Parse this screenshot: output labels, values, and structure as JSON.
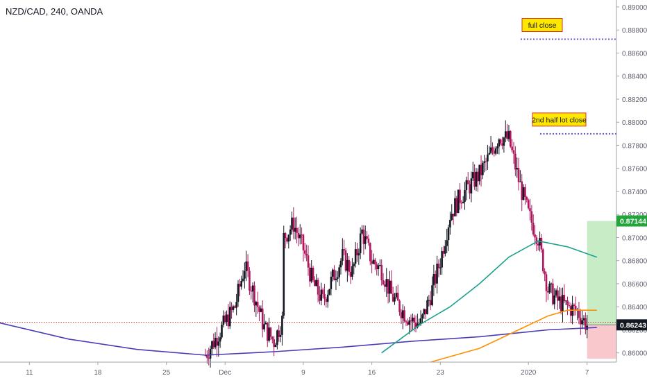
{
  "header": {
    "title": "NZD/CAD, 240, OANDA"
  },
  "colors": {
    "bg": "#ffffff",
    "axis": "#5d606b",
    "text": "#333333",
    "candle_up": "#131722",
    "candle_down": "#b0165e",
    "wick": "#5d606b",
    "ma_long": "#4a3cb5",
    "ma_mid": "#1aa18c",
    "ma_short": "#ff8f00",
    "ref_line": "#c0392b",
    "dotted_line": "#6a4fc8",
    "annotation_bg": "#ffe800",
    "annotation_border": "#d32f2f",
    "target_zone": "#c8ecc6",
    "stop_zone": "#f8c8cc",
    "price_tag_green": "#22a53a",
    "price_tag_dark": "#131722"
  },
  "annotations": [
    {
      "label": "full close",
      "price": 0.8872
    },
    {
      "label": "2nd half lot close",
      "price": 0.879
    }
  ],
  "price_tags": [
    {
      "label": "0.87144",
      "price": 0.87144,
      "style": "green"
    },
    {
      "label": "0.86243",
      "price": 0.86243,
      "style": "dark"
    }
  ],
  "chart_data": {
    "type": "candlestick",
    "title": "NZD/CAD, 240, OANDA",
    "y_axis": {
      "range": [
        0.8592,
        0.8906
      ],
      "ticks": [
        "0.89000",
        "0.88800",
        "0.88600",
        "0.88400",
        "0.88200",
        "0.88000",
        "0.87800",
        "0.87600",
        "0.87400",
        "0.87200",
        "0.87000",
        "0.86800",
        "0.86600",
        "0.86400",
        "0.86200",
        "0.86000"
      ],
      "tick_values": [
        0.89,
        0.888,
        0.886,
        0.884,
        0.882,
        0.88,
        0.878,
        0.876,
        0.874,
        0.872,
        0.87,
        0.868,
        0.866,
        0.864,
        0.862,
        0.86
      ]
    },
    "x_axis": {
      "range": [
        "2019-11-08",
        "2020-01-10"
      ],
      "ticks": [
        {
          "label": "11",
          "date": "2019-11-11"
        },
        {
          "label": "18",
          "date": "2019-11-18"
        },
        {
          "label": "25",
          "date": "2019-11-25"
        },
        {
          "label": "Dec",
          "date": "2019-12-01"
        },
        {
          "label": "9",
          "date": "2019-12-09"
        },
        {
          "label": "16",
          "date": "2019-12-16"
        },
        {
          "label": "23",
          "date": "2019-12-23"
        },
        {
          "label": "2020",
          "date": "2020-01-01"
        },
        {
          "label": "7",
          "date": "2020-01-07"
        }
      ]
    },
    "close_path": [
      [
        "2019-11-29",
        0.8598
      ],
      [
        "2019-12-02",
        0.864
      ],
      [
        "2019-12-03",
        0.8675
      ],
      [
        "2019-12-04",
        0.865
      ],
      [
        "2019-12-05",
        0.8622
      ],
      [
        "2019-12-06",
        0.861
      ],
      [
        "2019-12-06T20:00",
        0.8628
      ],
      [
        "2019-12-07",
        0.87
      ],
      [
        "2019-12-08",
        0.8712
      ],
      [
        "2019-12-09",
        0.869
      ],
      [
        "2019-12-10",
        0.866
      ],
      [
        "2019-12-11",
        0.8645
      ],
      [
        "2019-12-12",
        0.8665
      ],
      [
        "2019-12-13",
        0.8683
      ],
      [
        "2019-12-14",
        0.867
      ],
      [
        "2019-12-15",
        0.8705
      ],
      [
        "2019-12-16",
        0.868
      ],
      [
        "2019-12-17",
        0.8672
      ],
      [
        "2019-12-18",
        0.865
      ],
      [
        "2019-12-19",
        0.8638
      ],
      [
        "2019-12-20",
        0.8628
      ],
      [
        "2019-12-21",
        0.8625
      ],
      [
        "2019-12-22",
        0.865
      ],
      [
        "2019-12-23",
        0.868
      ],
      [
        "2019-12-24",
        0.872
      ],
      [
        "2019-12-25",
        0.8735
      ],
      [
        "2019-12-26",
        0.8745
      ],
      [
        "2019-12-27",
        0.8755
      ],
      [
        "2019-12-28",
        0.877
      ],
      [
        "2019-12-29",
        0.8788
      ],
      [
        "2019-12-30",
        0.8785
      ],
      [
        "2019-12-31",
        0.875
      ],
      [
        "2020-01-01",
        0.872
      ],
      [
        "2020-01-02",
        0.87
      ],
      [
        "2020-01-03",
        0.8655
      ],
      [
        "2020-01-04",
        0.8645
      ],
      [
        "2020-01-05",
        0.864
      ],
      [
        "2020-01-06",
        0.8636
      ],
      [
        "2020-01-07",
        0.8624
      ]
    ],
    "series": [
      {
        "name": "",
        "color": "#4a3cb5",
        "points": [
          [
            "2019-11-08",
            0.8626
          ],
          [
            "2019-11-15",
            0.8612
          ],
          [
            "2019-11-22",
            0.8603
          ],
          [
            "2019-11-29",
            0.8598
          ],
          [
            "2019-12-06",
            0.8601
          ],
          [
            "2019-12-13",
            0.8605
          ],
          [
            "2019-12-20",
            0.861
          ],
          [
            "2019-12-27",
            0.8614
          ],
          [
            "2020-01-03",
            0.862
          ],
          [
            "2020-01-08",
            0.8622
          ]
        ]
      },
      {
        "name": "",
        "color": "#1aa18c",
        "points": [
          [
            "2019-12-17",
            0.86
          ],
          [
            "2019-12-21",
            0.8625
          ],
          [
            "2019-12-24",
            0.864
          ],
          [
            "2019-12-27",
            0.866
          ],
          [
            "2019-12-30",
            0.8683
          ],
          [
            "2020-01-02",
            0.8697
          ],
          [
            "2020-01-05",
            0.8692
          ],
          [
            "2020-01-08",
            0.8683
          ]
        ]
      },
      {
        "name": "",
        "color": "#ff8f00",
        "points": [
          [
            "2019-12-22",
            0.8592
          ],
          [
            "2019-12-27",
            0.8604
          ],
          [
            "2019-12-31",
            0.862
          ],
          [
            "2020-01-03",
            0.8632
          ],
          [
            "2020-01-05",
            0.8637
          ],
          [
            "2020-01-08",
            0.8637
          ]
        ]
      }
    ],
    "reference_line": {
      "price": 0.86265
    },
    "position_box": {
      "entry": 0.86243,
      "target": 0.87144,
      "stop": 0.8595,
      "start": "2020-01-07",
      "end": "2020-01-10"
    },
    "grid": false
  }
}
